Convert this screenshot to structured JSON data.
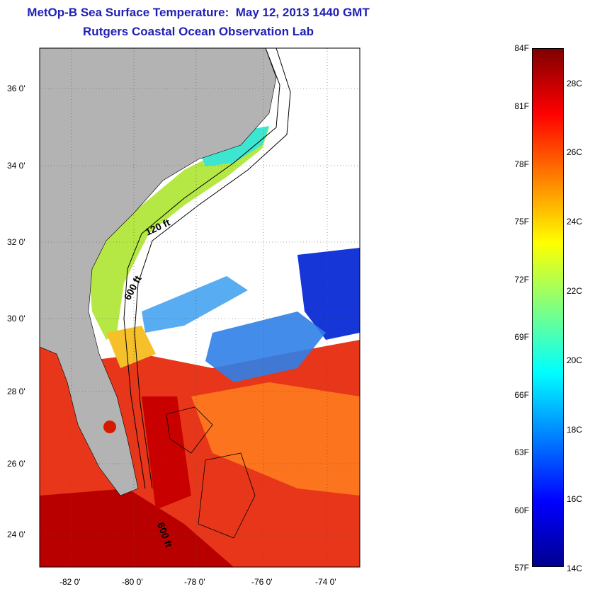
{
  "title": {
    "line1": "MetOp-B Sea Surface Temperature:  May 12, 2013 1440 GMT",
    "line2": "Rutgers Coastal Ocean Observation Lab"
  },
  "map": {
    "region": "US Southeast coast, Florida, Bahamas",
    "lat_ticks": [
      "36 0'",
      "34 0'",
      "32 0'",
      "30 0'",
      "28 0'",
      "26 0'",
      "24 0'"
    ],
    "lon_ticks": [
      "-82 0'",
      "-80 0'",
      "-78 0'",
      "-76 0'",
      "-74 0'"
    ],
    "contour_labels": [
      "120 ft",
      "600 ft",
      "600 ft"
    ],
    "colors": {
      "land": "#b3b3b3",
      "cloud": "#ffffff",
      "grid": "#555555"
    }
  },
  "colorbar": {
    "fahrenheit_labels": [
      "84F",
      "81F",
      "78F",
      "75F",
      "72F",
      "69F",
      "66F",
      "63F",
      "60F",
      "57F"
    ],
    "celsius_labels": [
      "28C",
      "26C",
      "24C",
      "22C",
      "20C",
      "18C",
      "16C",
      "14C"
    ],
    "colors": [
      "#7f0000",
      "#ff0000",
      "#ff8000",
      "#ffff00",
      "#80ff80",
      "#00ffff",
      "#0080ff",
      "#0000ff",
      "#00008f"
    ]
  }
}
